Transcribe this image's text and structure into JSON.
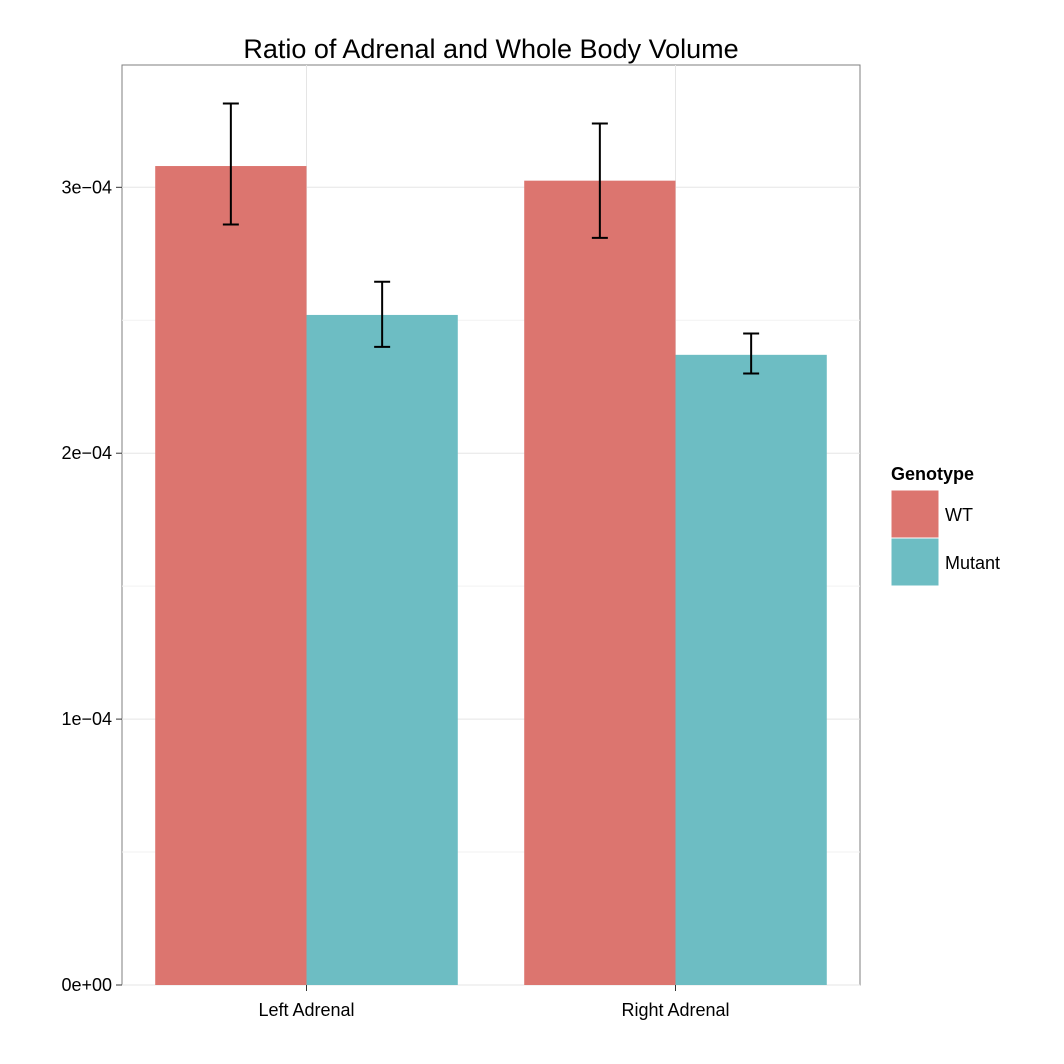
{
  "chart_data": {
    "type": "bar",
    "title": "Ratio of Adrenal and Whole Body Volume",
    "xlabel": "",
    "ylabel": "",
    "categories": [
      "Left Adrenal",
      "Right Adrenal"
    ],
    "series": [
      {
        "name": "WT",
        "color": "#DC756F",
        "values": [
          0.000308,
          0.0003025
        ],
        "error_low": [
          0.000286,
          0.000281
        ],
        "error_high": [
          0.0003315,
          0.000324
        ]
      },
      {
        "name": "Mutant",
        "color": "#6DBDC3",
        "values": [
          0.000252,
          0.000237
        ],
        "error_low": [
          0.00024,
          0.00023
        ],
        "error_high": [
          0.0002645,
          0.000245
        ]
      }
    ],
    "ylim": [
      0,
      0.000346
    ],
    "yticks": [
      0,
      0.0001,
      0.0002,
      0.0003
    ],
    "ytick_labels": [
      "0e+00",
      "1e−04",
      "2e−04",
      "3e−04"
    ],
    "grid": true,
    "legend": {
      "title": "Genotype",
      "position": "right"
    }
  }
}
